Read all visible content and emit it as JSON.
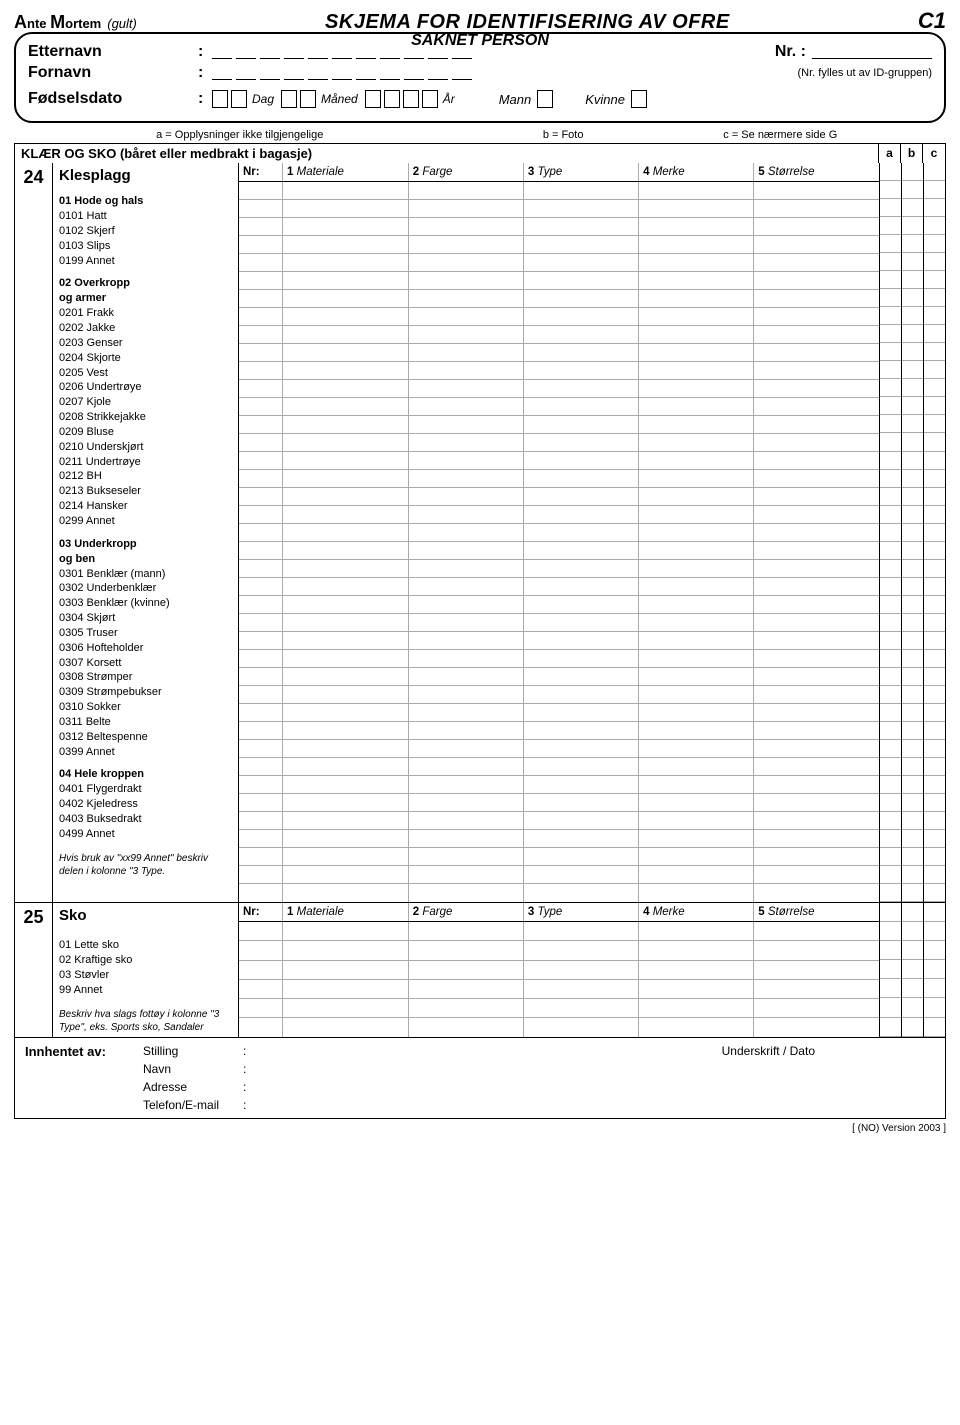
{
  "header": {
    "ante": "A",
    "nte": "nte",
    "m": "M",
    "ortem": "ortem",
    "gult": "(gult)",
    "title": "SKJEMA FOR IDENTIFISERING AV OFRE",
    "code": "C1",
    "sub": "SAKNET PERSON",
    "surname": "Etternavn",
    "firstname": "Fornavn",
    "dob": "Fødselsdato",
    "nr": "Nr.",
    "idnote": "(Nr. fylles ut av ID-gruppen)",
    "day": "Dag",
    "month": "Måned",
    "year": "År",
    "male": "Mann",
    "female": "Kvinne"
  },
  "legend": {
    "a": "a = Opplysninger ikke tilgjengelige",
    "b": "b = Foto",
    "c": "c = Se nærmere side G"
  },
  "abc": {
    "a": "a",
    "b": "b",
    "c": "c"
  },
  "sectionTitle": "KLÆR OG SKO (båret eller medbrakt i bagasje)",
  "s24": {
    "num": "24",
    "name": "Klesplagg",
    "gridHeader": {
      "nr": "Nr:",
      "c1n": "1",
      "c1": "Materiale",
      "c2n": "2",
      "c2": "Farge",
      "c3n": "3",
      "c3": "Type",
      "c4n": "4",
      "c4": "Merke",
      "c5n": "5",
      "c5": "Størrelse"
    },
    "g1": {
      "head": "01 Hode og hals",
      "i": [
        "0101 Hatt",
        "0102 Skjerf",
        "0103 Slips",
        "0199 Annet"
      ]
    },
    "g2": {
      "head": "02 Overkropp",
      "sub": "og armer",
      "i": [
        "0201 Frakk",
        "0202 Jakke",
        "0203 Genser",
        "0204 Skjorte",
        "0205 Vest",
        "0206 Undertrøye",
        "0207 Kjole",
        "0208 Strikkejakke",
        "0209 Bluse",
        "0210 Underskjørt",
        "0211 Undertrøye",
        "0212 BH",
        "0213 Bukseseler",
        "0214 Hansker",
        "0299 Annet"
      ]
    },
    "g3": {
      "head": "03 Underkropp",
      "sub": "og ben",
      "i": [
        "0301 Benklær (mann)",
        "0302 Underbenklær",
        "0303 Benklær (kvinne)",
        "0304 Skjørt",
        "0305 Truser",
        "0306 Hofteholder",
        "0307 Korsett",
        "0308 Strømper",
        "0309 Strømpebukser",
        "0310 Sokker",
        "0311 Belte",
        "0312 Beltespenne",
        "0399 Annet"
      ]
    },
    "g4": {
      "head": "04 Hele kroppen",
      "i": [
        "0401 Flygerdrakt",
        "0402 Kjeledress",
        "0403 Buksedrakt",
        "0499 Annet"
      ]
    },
    "note": "Hvis bruk av \"xx99 Annet\" beskriv delen i kolonne \"3 Type."
  },
  "s25": {
    "num": "25",
    "name": "Sko",
    "gridHeader": {
      "nr": "Nr:",
      "c1n": "1",
      "c1": "Materiale",
      "c2n": "2",
      "c2": "Farge",
      "c3n": "3",
      "c3": "Type",
      "c4n": "4",
      "c4": "Merke",
      "c5n": "5",
      "c5": "Størrelse"
    },
    "i": [
      "01 Lette sko",
      "02 Kraftige sko",
      "03 Støvler",
      "99 Annet"
    ],
    "note": "Beskriv hva slags fottøy i kolonne \"3 Type\", eks. Sports sko, Sandaler"
  },
  "footer": {
    "label": "Innhentet av:",
    "f1": "Stilling",
    "f2": "Navn",
    "f3": "Adresse",
    "f4": "Telefon/E-mail",
    "sign": "Underskrift / Dato"
  },
  "version": "[ (NO) Version 2003 ]",
  "rows24": 40,
  "rows25": 6
}
